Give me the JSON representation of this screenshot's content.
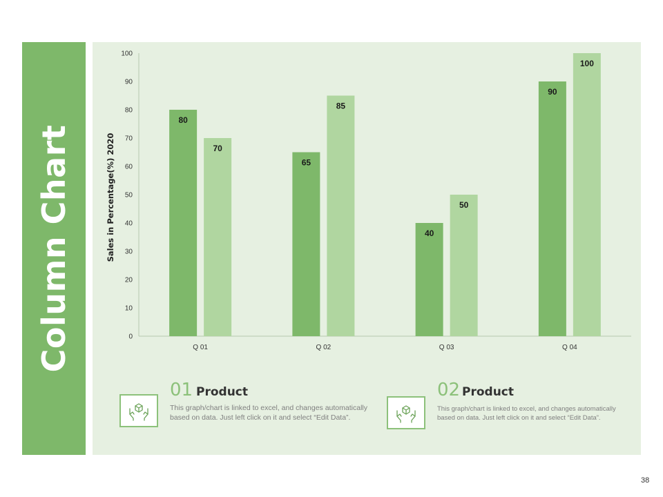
{
  "slide": {
    "title": "Column Chart",
    "page_number": "38"
  },
  "colors": {
    "sidebar": "#7eb86a",
    "panel": "#e6f0e1",
    "series_1": "#7eb86a",
    "series_2": "#b0d6a0",
    "accent_number": "#8cc17a"
  },
  "chart_data": {
    "type": "bar",
    "categories": [
      "Q 01",
      "Q 02",
      "Q 03",
      "Q 04"
    ],
    "series": [
      {
        "values": [
          80,
          65,
          40,
          90
        ]
      },
      {
        "values": [
          70,
          85,
          50,
          100
        ]
      }
    ],
    "ylabel": "Sales in Percentage(%) 2020",
    "ylim": [
      0,
      100
    ],
    "yticks": [
      0,
      10,
      20,
      30,
      40,
      50,
      60,
      70,
      80,
      90,
      100
    ],
    "grid": false,
    "data_labels": true
  },
  "cards": [
    {
      "number": "01",
      "title": "Product",
      "description": "This graph/chart is linked to excel, and changes automatically based on data. Just left click on it and select “Edit Data”.",
      "icon": "hands-box-icon"
    },
    {
      "number": "02",
      "title": "Product",
      "description": "This graph/chart is linked to excel, and changes automatically based on data. Just left click on it and select “Edit Data”.",
      "icon": "hands-box-icon"
    }
  ]
}
